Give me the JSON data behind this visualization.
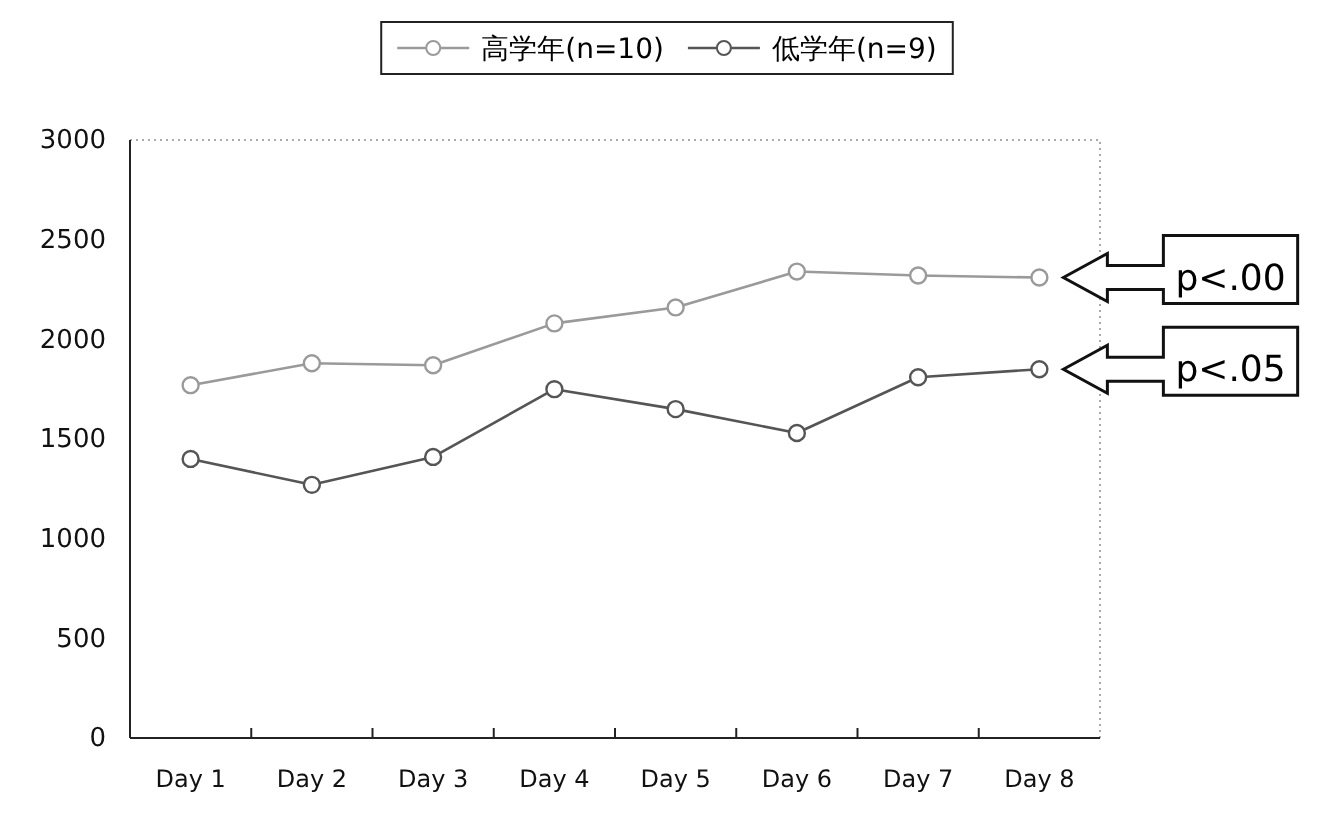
{
  "chart_data": {
    "type": "line",
    "categories": [
      "Day 1",
      "Day 2",
      "Day 3",
      "Day 4",
      "Day 5",
      "Day 6",
      "Day 7",
      "Day 8"
    ],
    "series": [
      {
        "name": "高学年(n=10)",
        "color": "#9a9a9a",
        "values": [
          1770,
          1880,
          1870,
          2080,
          2160,
          2340,
          2320,
          2310
        ]
      },
      {
        "name": "低学年(n=9)",
        "color": "#555555",
        "values": [
          1400,
          1270,
          1410,
          1750,
          1650,
          1530,
          1810,
          1850
        ]
      }
    ],
    "ylim": [
      0,
      3000
    ],
    "yticks": [
      0,
      500,
      1000,
      1500,
      2000,
      2500,
      3000
    ],
    "grid": false,
    "legend": "top",
    "marker": "circle",
    "line_style": "solid",
    "annotations": [
      "p<.00",
      "p<.05"
    ]
  }
}
